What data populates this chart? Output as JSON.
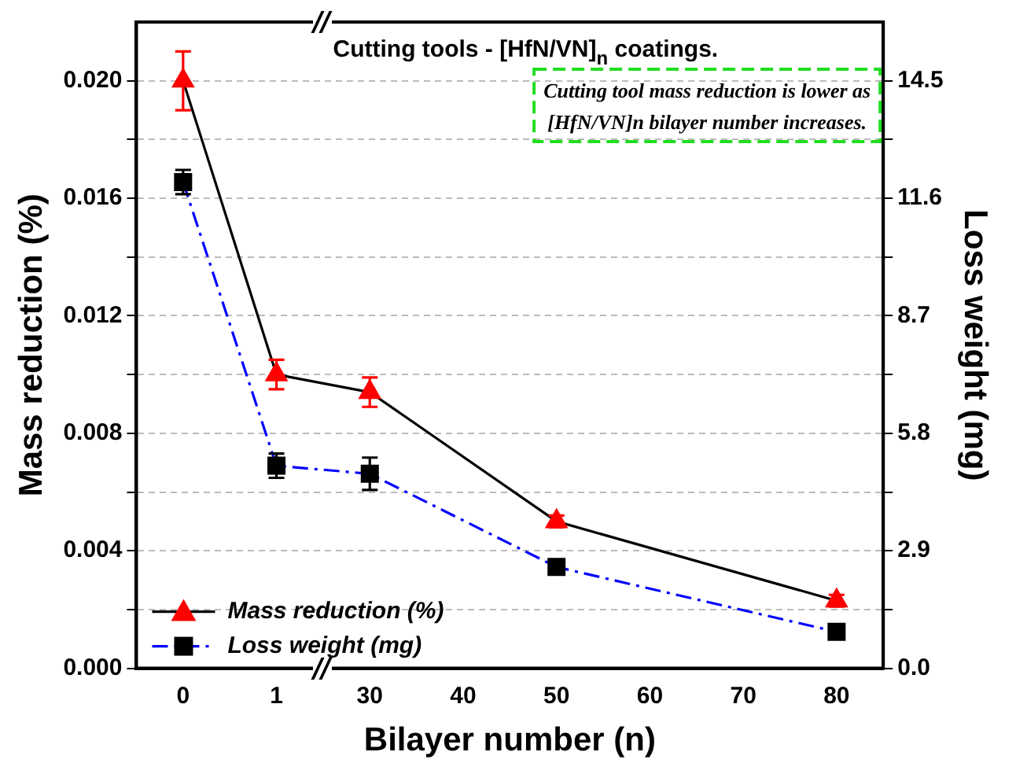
{
  "chart_data": {
    "type": "line",
    "title": "Cutting tools - [HfN/VN]$_{n}$ coatings.",
    "xlabel": "Bilayer number (n)",
    "ylabel": "Mass reduction (%)",
    "y2label": "Loss weight (mg)",
    "annotations": [
      "Cutting tool mass reduction is lower as [HfN/VN]n bilayer number increases."
    ],
    "categories": [
      "0",
      "1",
      "30",
      "40",
      "50",
      "60",
      "70",
      "80"
    ],
    "series": [
      {
        "name": "Mass reduction (%)",
        "color": "#ff0000",
        "marker": "triangle",
        "line_style": "solid",
        "values": [
          0.02,
          0.01,
          0.0094,
          null,
          0.005,
          null,
          null,
          0.0023
        ],
        "errors": [
          0.001,
          0.0005,
          0.0005,
          null,
          0.0002,
          null,
          null,
          0.0002
        ]
      },
      {
        "name": "Loss weight (mg)",
        "color": "#000000",
        "marker": "square",
        "line_style": "dashed",
        "axis": "y2",
        "values": [
          12.0,
          5.0,
          4.8,
          null,
          2.5,
          null,
          null,
          0.9
        ],
        "errors": [
          0.3,
          0.3,
          0.4,
          null,
          0.1,
          null,
          null,
          0.1
        ]
      }
    ],
    "ylim": [
      0,
      0.022
    ],
    "yticks": [
      {
        "value": 0,
        "label": "0.000"
      },
      {
        "value": 0.002,
        "label": null
      },
      {
        "value": 0.004,
        "label": "0.004"
      },
      {
        "value": 0.006,
        "label": null
      },
      {
        "value": 0.008,
        "label": "0.008"
      },
      {
        "value": 0.01,
        "label": null
      },
      {
        "value": 0.012,
        "label": "0.012"
      },
      {
        "value": 0.014,
        "label": null
      },
      {
        "value": 0.016,
        "label": "0.016"
      },
      {
        "value": 0.018,
        "label": null
      },
      {
        "value": 0.02,
        "label": "0.020"
      }
    ],
    "y2lim": [
      0,
      15.95
    ],
    "y2ticks": [
      {
        "value": 0,
        "label": "0.0"
      },
      {
        "value": 1.45,
        "label": null
      },
      2.9,
      {
        "value": 4.35,
        "label": null
      },
      5.8,
      {
        "value": 7.25,
        "label": null
      },
      8.7,
      {
        "value": 10.15,
        "label": null
      },
      11.6,
      {
        "value": 13.05,
        "label": null
      },
      14.5
    ],
    "grid": "y",
    "legend": "bottom left"
  }
}
